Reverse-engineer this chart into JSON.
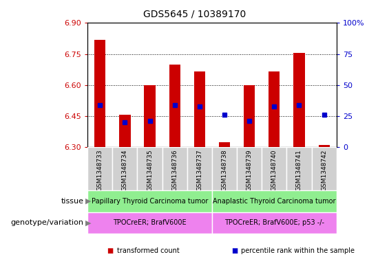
{
  "title": "GDS5645 / 10389170",
  "samples": [
    "GSM1348733",
    "GSM1348734",
    "GSM1348735",
    "GSM1348736",
    "GSM1348737",
    "GSM1348738",
    "GSM1348739",
    "GSM1348740",
    "GSM1348741",
    "GSM1348742"
  ],
  "transformed_count": [
    6.82,
    6.455,
    6.6,
    6.7,
    6.665,
    6.325,
    6.6,
    6.665,
    6.755,
    6.31
  ],
  "percentile_rank": [
    34,
    20,
    21,
    34,
    33,
    26,
    21,
    33,
    34,
    26
  ],
  "ylim": [
    6.3,
    6.9
  ],
  "y2lim": [
    0,
    100
  ],
  "yticks": [
    6.3,
    6.45,
    6.6,
    6.75,
    6.9
  ],
  "y2ticks": [
    0,
    25,
    50,
    75,
    100
  ],
  "bar_color": "#cc0000",
  "dot_color": "#0000cc",
  "tissue_labels": [
    "Papillary Thyroid Carcinoma tumor",
    "Anaplastic Thyroid Carcinoma tumor"
  ],
  "tissue_color": "#90ee90",
  "genotype_labels": [
    "TPOCreER; BrafV600E",
    "TPOCreER; BrafV600E; p53 -/-"
  ],
  "genotype_color": "#ee82ee",
  "legend_colors": [
    "#cc0000",
    "#0000cc"
  ],
  "legend_labels": [
    "transformed count",
    "percentile rank within the sample"
  ],
  "axis_color_left": "#cc0000",
  "axis_color_right": "#0000cc",
  "sample_box_color": "#d0d0d0",
  "grid_color": "#000000"
}
